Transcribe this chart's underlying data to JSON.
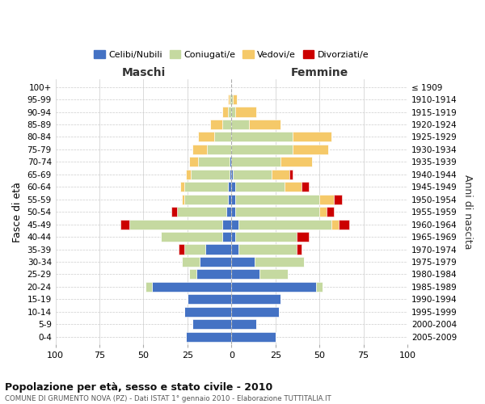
{
  "age_groups": [
    "0-4",
    "5-9",
    "10-14",
    "15-19",
    "20-24",
    "25-29",
    "30-34",
    "35-39",
    "40-44",
    "45-49",
    "50-54",
    "55-59",
    "60-64",
    "65-69",
    "70-74",
    "75-79",
    "80-84",
    "85-89",
    "90-94",
    "95-99",
    "100+"
  ],
  "birth_years": [
    "2005-2009",
    "2000-2004",
    "1995-1999",
    "1990-1994",
    "1985-1989",
    "1980-1984",
    "1975-1979",
    "1970-1974",
    "1965-1969",
    "1960-1964",
    "1955-1959",
    "1950-1954",
    "1945-1949",
    "1940-1944",
    "1935-1939",
    "1930-1934",
    "1925-1929",
    "1920-1924",
    "1915-1919",
    "1910-1914",
    "≤ 1909"
  ],
  "colors": {
    "celibi": "#4472C4",
    "coniugati": "#C5D9A0",
    "vedovi": "#F5C969",
    "divorziati": "#CC0000"
  },
  "maschi_celibi": [
    26,
    22,
    27,
    25,
    45,
    20,
    18,
    15,
    5,
    5,
    3,
    2,
    2,
    1,
    1,
    0,
    0,
    0,
    0,
    0,
    0
  ],
  "maschi_coniugati": [
    0,
    0,
    0,
    0,
    4,
    4,
    10,
    12,
    35,
    53,
    28,
    25,
    25,
    22,
    18,
    14,
    10,
    5,
    2,
    1,
    0
  ],
  "maschi_vedovi": [
    0,
    0,
    0,
    0,
    0,
    0,
    0,
    0,
    0,
    0,
    0,
    1,
    2,
    3,
    5,
    8,
    9,
    7,
    3,
    1,
    0
  ],
  "maschi_divorziati": [
    0,
    0,
    0,
    0,
    0,
    0,
    0,
    3,
    0,
    5,
    3,
    0,
    0,
    0,
    0,
    0,
    0,
    0,
    0,
    0,
    0
  ],
  "femmine_celibi": [
    25,
    14,
    27,
    28,
    48,
    16,
    13,
    4,
    2,
    4,
    2,
    2,
    2,
    1,
    0,
    0,
    0,
    0,
    0,
    0,
    0
  ],
  "femmine_coniugati": [
    0,
    0,
    0,
    0,
    4,
    16,
    28,
    33,
    35,
    53,
    48,
    48,
    28,
    22,
    28,
    35,
    35,
    10,
    2,
    1,
    0
  ],
  "femmine_vedovi": [
    0,
    0,
    0,
    0,
    0,
    0,
    0,
    0,
    0,
    4,
    4,
    8,
    10,
    10,
    18,
    20,
    22,
    18,
    12,
    2,
    0
  ],
  "femmine_divorziati": [
    0,
    0,
    0,
    0,
    0,
    0,
    0,
    3,
    7,
    6,
    4,
    5,
    4,
    2,
    0,
    0,
    0,
    0,
    0,
    0,
    0
  ],
  "xlim": 100,
  "title": "Popolazione per età, sesso e stato civile - 2010",
  "subtitle": "COMUNE DI GRUMENTO NOVA (PZ) - Dati ISTAT 1° gennaio 2010 - Elaborazione TUTTITALIA.IT",
  "ylabel_left": "Fasce di età",
  "ylabel_right": "Anni di nascita",
  "xlabel_left": "Maschi",
  "xlabel_right": "Femmine",
  "legend_labels": [
    "Celibi/Nubili",
    "Coniugati/e",
    "Vedovi/e",
    "Divorziati/e"
  ]
}
